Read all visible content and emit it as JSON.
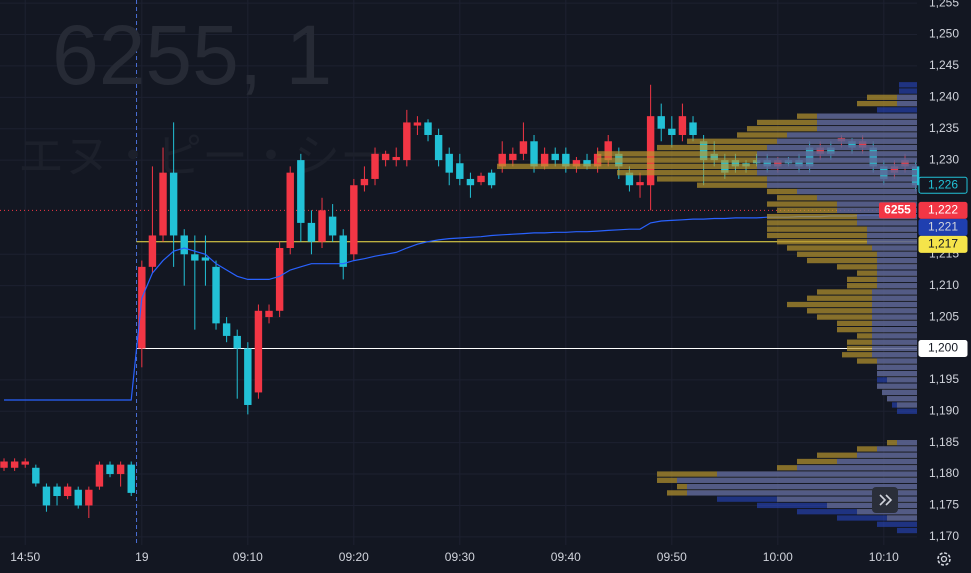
{
  "chart_data": {
    "type": "candlestick",
    "watermark": "6255, 1",
    "watermark_name": "エヌ・ピー・シー",
    "up_color": "#f23645",
    "down_color": "#22c1d6",
    "open": [
      1181,
      1181,
      1181.5,
      1181,
      1178,
      1178,
      1176.5,
      1177.5,
      1175,
      1178,
      1181.5,
      1180,
      1181.5,
      1200,
      1213,
      1218,
      1228,
      1218,
      1215,
      1214.5,
      1213,
      1204,
      1202,
      1200,
      1193,
      1205,
      1206,
      1216,
      1230,
      1220,
      1217,
      1221,
      1218,
      1215,
      1226,
      1227,
      1230,
      1230,
      1230,
      1235.5,
      1236,
      1234,
      1231,
      1229.5,
      1227,
      1226.5,
      1228,
      1229,
      1230,
      1231,
      1233,
      1229,
      1231,
      1231,
      1229,
      1230,
      1229,
      1230,
      1231,
      1228,
      1226,
      1226,
      1237,
      1235,
      1234,
      1236,
      1233,
      1231,
      1230,
      1230,
      1229.5,
      1230,
      1230,
      1229,
      1230,
      1230,
      1232,
      1231,
      1232,
      1233,
      1233,
      1232,
      1232,
      1229,
      1228,
      1229,
      1229
    ],
    "high": [
      1182.5,
      1182.5,
      1182.5,
      1181.5,
      1178.5,
      1178.5,
      1178.5,
      1178,
      1178,
      1182,
      1182,
      1182,
      1182,
      1214,
      1229,
      1232,
      1236,
      1219,
      1218,
      1218,
      1214,
      1205,
      1203,
      1201,
      1207,
      1207,
      1217,
      1229,
      1231,
      1222,
      1224,
      1223,
      1219,
      1227,
      1229,
      1232,
      1231.5,
      1232,
      1238,
      1237,
      1236.5,
      1235,
      1232,
      1231,
      1228,
      1228,
      1228.5,
      1233,
      1232,
      1236,
      1234,
      1232,
      1232,
      1232,
      1230.5,
      1231,
      1232,
      1234,
      1232,
      1229,
      1228,
      1242,
      1239,
      1237,
      1239,
      1237,
      1234,
      1233,
      1231,
      1231,
      1230,
      1231,
      1231,
      1230.5,
      1230.5,
      1231,
      1233,
      1233,
      1233,
      1234,
      1233.5,
      1234,
      1233,
      1230,
      1230,
      1231,
      1230
    ],
    "low": [
      1180.5,
      1180.5,
      1181,
      1178,
      1174,
      1175,
      1176,
      1174.5,
      1173,
      1177.5,
      1179.5,
      1178,
      1176.5,
      1197,
      1212,
      1217,
      1213,
      1210,
      1203,
      1210,
      1203,
      1201,
      1192,
      1189.5,
      1192,
      1204,
      1205,
      1215,
      1217,
      1215,
      1216,
      1217,
      1211,
      1214,
      1225,
      1226,
      1229,
      1229,
      1229,
      1234,
      1233,
      1229,
      1226,
      1226,
      1224,
      1226,
      1225.5,
      1228,
      1229,
      1230,
      1228,
      1228.5,
      1229,
      1228,
      1228,
      1228.5,
      1228,
      1229,
      1227,
      1225,
      1224,
      1222,
      1233,
      1232,
      1233,
      1233,
      1226,
      1229,
      1227,
      1228,
      1228,
      1229,
      1228,
      1228,
      1229,
      1228,
      1228,
      1230,
      1230,
      1232,
      1231,
      1231,
      1228,
      1226,
      1227,
      1228,
      1225
    ],
    "close": [
      1182,
      1182,
      1182,
      1178.5,
      1175,
      1176.5,
      1178,
      1175,
      1177.5,
      1181.5,
      1180,
      1181.5,
      1177,
      1213,
      1218,
      1228,
      1218,
      1215,
      1214,
      1214,
      1204,
      1202,
      1200,
      1191,
      1206,
      1206,
      1216,
      1228,
      1220,
      1217,
      1222,
      1218,
      1213,
      1226,
      1227,
      1231,
      1231,
      1230.5,
      1236,
      1236,
      1234,
      1230,
      1228,
      1227,
      1226,
      1227.5,
      1226,
      1231,
      1231,
      1233,
      1229,
      1231,
      1230,
      1229,
      1230,
      1229,
      1231,
      1233,
      1229,
      1226,
      1226.5,
      1237,
      1235,
      1234,
      1237,
      1234,
      1230,
      1230,
      1228,
      1229,
      1229,
      1229.5,
      1229,
      1230,
      1229.5,
      1229,
      1229,
      1232,
      1231,
      1233.5,
      1232,
      1233,
      1229,
      1227,
      1229,
      1230,
      1226
    ],
    "vwap": {
      "color": "#2962ff",
      "values": [
        1191.8,
        1191.8,
        1191.8,
        1191.8,
        1191.8,
        1191.8,
        1191.8,
        1191.8,
        1191.8,
        1191.8,
        1191.8,
        1191.8,
        1191.8,
        1208,
        1212,
        1214,
        1215.5,
        1216,
        1215.5,
        1215,
        1213.5,
        1212.5,
        1211.5,
        1211,
        1211,
        1211,
        1211.5,
        1212.5,
        1213,
        1213.5,
        1213.5,
        1213.5,
        1213.5,
        1214,
        1214.3,
        1214.7,
        1215,
        1215.3,
        1216,
        1216.6,
        1217,
        1217.3,
        1217.5,
        1217.6,
        1217.7,
        1217.8,
        1218,
        1218.1,
        1218.2,
        1218.3,
        1218.4,
        1218.4,
        1218.5,
        1218.5,
        1218.6,
        1218.6,
        1218.7,
        1218.8,
        1218.9,
        1219,
        1219,
        1220,
        1220.3,
        1220.4,
        1220.5,
        1220.6,
        1220.6,
        1220.7,
        1220.7,
        1220.8,
        1220.8,
        1220.8,
        1220.9,
        1220.9,
        1220.9,
        1221,
        1221,
        1221,
        1221.1,
        1221.1,
        1221.1,
        1221.2,
        1221.2,
        1221.2,
        1221.2,
        1221.3,
        1221.3
      ]
    },
    "volume_profile": {
      "levels": [
        1242,
        1241,
        1240,
        1239,
        1238,
        1237,
        1236,
        1235,
        1234,
        1233,
        1232,
        1231,
        1230,
        1229,
        1228,
        1227,
        1226,
        1225,
        1224,
        1223,
        1222,
        1221,
        1220,
        1219,
        1218,
        1217,
        1216,
        1215,
        1214,
        1213,
        1212,
        1211,
        1210,
        1209,
        1208,
        1207,
        1206,
        1205,
        1204,
        1203,
        1202,
        1201,
        1200,
        1199,
        1198,
        1197,
        1196,
        1195,
        1194,
        1193,
        1192,
        1191,
        1190,
        1189,
        1188,
        1187,
        1186,
        1185,
        1184,
        1183,
        1182,
        1181,
        1180,
        1179,
        1178,
        1177,
        1176,
        1175,
        1174,
        1173,
        1172,
        1171
      ],
      "series": [
        {
          "color": "#b8962e",
          "values": [
            0,
            0,
            50,
            60,
            0,
            120,
            160,
            170,
            180,
            230,
            260,
            320,
            320,
            420,
            300,
            260,
            220,
            150,
            140,
            150,
            140,
            150,
            150,
            150,
            150,
            140,
            130,
            120,
            110,
            80,
            60,
            70,
            70,
            100,
            110,
            130,
            110,
            100,
            80,
            80,
            60,
            70,
            70,
            75,
            60,
            40,
            40,
            30,
            40,
            35,
            30,
            20,
            0,
            0,
            0,
            0,
            0,
            30,
            60,
            100,
            120,
            140,
            260,
            260,
            240,
            250,
            140,
            90,
            60,
            30,
            0,
            0
          ]
        },
        {
          "color": "#2a4bd0",
          "values": [
            18,
            18,
            20,
            20,
            40,
            100,
            100,
            100,
            130,
            140,
            150,
            160,
            160,
            160,
            160,
            150,
            150,
            120,
            100,
            80,
            80,
            60,
            60,
            50,
            50,
            50,
            45,
            40,
            40,
            40,
            40,
            40,
            40,
            45,
            45,
            45,
            45,
            45,
            45,
            45,
            45,
            45,
            45,
            45,
            40,
            40,
            40,
            40,
            40,
            35,
            30,
            25,
            20,
            0,
            0,
            0,
            0,
            20,
            40,
            60,
            80,
            120,
            200,
            240,
            230,
            230,
            200,
            160,
            120,
            80,
            40,
            20
          ]
        }
      ]
    },
    "markers": [
      {
        "value": 1226,
        "label": "1,226",
        "color": "#22c1d6",
        "text_color": "#22c1d6",
        "outline": true
      },
      {
        "value": 1222,
        "label": "1,222",
        "color": "#f23645",
        "text_color": "#ffffff",
        "tag": "6255",
        "line": "dotted"
      },
      {
        "value": 1221,
        "label": "1,221",
        "color": "#1f3fb0",
        "text_color": "#d1d4dc"
      },
      {
        "value": 1217,
        "label": "1,217",
        "color": "#f5e44a",
        "text_color": "#131722",
        "line": "solid"
      },
      {
        "value": 1200,
        "label": "1,200",
        "color": "#ffffff",
        "text_color": "#131722",
        "line": "solid"
      }
    ],
    "xlim": [
      -0.38,
      86.13
    ],
    "xticks": [
      {
        "value": 2,
        "label": "14:50"
      },
      {
        "value": 13,
        "label": "19"
      },
      {
        "value": 23,
        "label": "09:10"
      },
      {
        "value": 33,
        "label": "09:20"
      },
      {
        "value": 43,
        "label": "09:30"
      },
      {
        "value": 53,
        "label": "09:40"
      },
      {
        "value": 63,
        "label": "09:50"
      },
      {
        "value": 73,
        "label": "10:00"
      },
      {
        "value": 83,
        "label": "10:10"
      }
    ],
    "ylim": [
      1168.7,
      1255.5
    ],
    "yticks": [
      {
        "value": 1170,
        "label": "1,170"
      },
      {
        "value": 1175,
        "label": "1,175"
      },
      {
        "value": 1180,
        "label": "1,180"
      },
      {
        "value": 1185,
        "label": "1,185"
      },
      {
        "value": 1190,
        "label": "1,190"
      },
      {
        "value": 1195,
        "label": "1,195"
      },
      {
        "value": 1205,
        "label": "1,205"
      },
      {
        "value": 1210,
        "label": "1,210"
      },
      {
        "value": 1215,
        "label": "1,215"
      },
      {
        "value": 1230,
        "label": "1,230"
      },
      {
        "value": 1235,
        "label": "1,235"
      },
      {
        "value": 1240,
        "label": "1,240"
      },
      {
        "value": 1245,
        "label": "1,245"
      },
      {
        "value": 1250,
        "label": "1,250"
      },
      {
        "value": 1255,
        "label": "1,255"
      }
    ],
    "grid": true
  }
}
